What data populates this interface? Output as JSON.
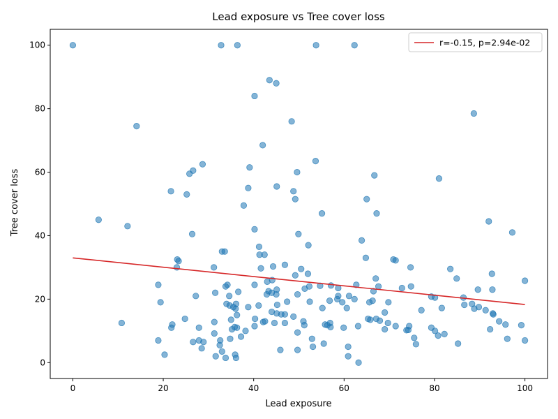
{
  "chart_data": {
    "type": "scatter",
    "title": "Lead exposure vs Tree cover loss",
    "xlabel": "Lead exposure",
    "ylabel": "Tree cover loss",
    "xlim": [
      -5,
      105
    ],
    "ylim": [
      -5,
      105
    ],
    "xticks": [
      0,
      20,
      40,
      60,
      80,
      100
    ],
    "yticks": [
      0,
      20,
      40,
      60,
      80,
      100
    ],
    "grid": false,
    "legend_position": "top-right",
    "point_color": "#1f77b4",
    "line_color": "#d62728",
    "series": [
      {
        "points": [
          [
            0,
            100
          ],
          [
            32.8,
            100
          ],
          [
            36.4,
            100
          ],
          [
            53.8,
            100
          ],
          [
            62.3,
            100
          ],
          [
            43.5,
            89
          ],
          [
            45,
            88
          ],
          [
            40.2,
            84
          ],
          [
            88.7,
            78.5
          ],
          [
            14.1,
            74.5
          ],
          [
            48.4,
            76
          ],
          [
            42,
            68.5
          ],
          [
            53.7,
            63.5
          ],
          [
            28.7,
            62.5
          ],
          [
            39.1,
            61.5
          ],
          [
            26.6,
            60.5
          ],
          [
            25.8,
            59.5
          ],
          [
            49.6,
            60
          ],
          [
            66.7,
            59
          ],
          [
            81,
            58
          ],
          [
            45.1,
            55.5
          ],
          [
            38.8,
            55
          ],
          [
            21.7,
            54
          ],
          [
            48.8,
            54
          ],
          [
            25.2,
            53
          ],
          [
            49.2,
            51.5
          ],
          [
            65,
            51.5
          ],
          [
            37.8,
            49.5
          ],
          [
            55.1,
            47
          ],
          [
            67.2,
            47
          ],
          [
            5.7,
            45
          ],
          [
            92,
            44.5
          ],
          [
            12.1,
            43
          ],
          [
            97.2,
            41
          ],
          [
            40.2,
            42
          ],
          [
            26.4,
            40.5
          ],
          [
            49.9,
            40.5
          ],
          [
            63.9,
            38.5
          ],
          [
            52.1,
            37
          ],
          [
            41.2,
            36.5
          ],
          [
            33,
            35
          ],
          [
            33.6,
            35
          ],
          [
            41.3,
            34
          ],
          [
            42.4,
            34
          ],
          [
            64.8,
            33
          ],
          [
            23.1,
            32.5
          ],
          [
            23.4,
            32
          ],
          [
            70.9,
            32.5
          ],
          [
            71.4,
            32.2
          ],
          [
            31.2,
            30
          ],
          [
            23,
            30
          ],
          [
            41.6,
            29.7
          ],
          [
            44.3,
            30.3
          ],
          [
            46.9,
            30.8
          ],
          [
            50.5,
            29.5
          ],
          [
            74.7,
            30
          ],
          [
            83.5,
            29.5
          ],
          [
            52,
            28
          ],
          [
            49.2,
            27.5
          ],
          [
            67,
            26.5
          ],
          [
            92.7,
            28
          ],
          [
            84.9,
            26.5
          ],
          [
            44.1,
            26
          ],
          [
            43,
            25.5
          ],
          [
            100,
            25.8
          ],
          [
            18.9,
            24.5
          ],
          [
            33.8,
            24
          ],
          [
            34.2,
            24.5
          ],
          [
            40.2,
            24.5
          ],
          [
            52.3,
            24
          ],
          [
            54.7,
            24.2
          ],
          [
            57.1,
            24.3
          ],
          [
            58.7,
            23.5
          ],
          [
            62.7,
            24.5
          ],
          [
            67.6,
            24
          ],
          [
            72.8,
            23.5
          ],
          [
            74.8,
            24
          ],
          [
            89.6,
            23
          ],
          [
            92.8,
            23
          ],
          [
            51.3,
            23.3
          ],
          [
            45.1,
            23
          ],
          [
            43.3,
            22.5
          ],
          [
            44,
            22
          ],
          [
            36.6,
            22.3
          ],
          [
            31.5,
            22
          ],
          [
            27.2,
            21
          ],
          [
            34.6,
            21
          ],
          [
            42.9,
            21.5
          ],
          [
            45,
            21.5
          ],
          [
            49.7,
            21.5
          ],
          [
            58.7,
            21
          ],
          [
            61.1,
            21
          ],
          [
            62.3,
            20
          ],
          [
            66.5,
            22.5
          ],
          [
            80.1,
            20.5
          ],
          [
            79.3,
            20.8
          ],
          [
            86.4,
            20.5
          ],
          [
            56.8,
            19.5
          ],
          [
            58.5,
            20
          ],
          [
            59.6,
            19
          ],
          [
            65.6,
            19
          ],
          [
            66.3,
            19.5
          ],
          [
            69.8,
            19
          ],
          [
            19.4,
            19
          ],
          [
            34,
            18.5
          ],
          [
            34.7,
            18
          ],
          [
            35.5,
            17.5
          ],
          [
            36.1,
            18.5
          ],
          [
            38.8,
            17.5
          ],
          [
            41.1,
            18
          ],
          [
            45.2,
            18.2
          ],
          [
            47.4,
            19.2
          ],
          [
            52.4,
            19.2
          ],
          [
            60.6,
            17.2
          ],
          [
            77.1,
            16.5
          ],
          [
            81.6,
            17.2
          ],
          [
            86.6,
            18.2
          ],
          [
            88.3,
            18.5
          ],
          [
            88.8,
            17
          ],
          [
            89.8,
            17.5
          ],
          [
            91.3,
            16.5
          ],
          [
            55.2,
            17.2
          ],
          [
            36,
            17
          ],
          [
            44,
            16
          ],
          [
            45.1,
            15.5
          ],
          [
            46.1,
            15.2
          ],
          [
            46.9,
            15.2
          ],
          [
            48.8,
            14.5
          ],
          [
            69,
            15.8
          ],
          [
            93,
            15.2
          ],
          [
            92.9,
            15.5
          ],
          [
            24.8,
            13.8
          ],
          [
            31.3,
            12.8
          ],
          [
            35,
            13.5
          ],
          [
            36.3,
            15
          ],
          [
            40.3,
            13.8
          ],
          [
            42.1,
            12.8
          ],
          [
            42.5,
            13
          ],
          [
            44.6,
            12.5
          ],
          [
            46.9,
            12.5
          ],
          [
            51,
            13
          ],
          [
            55.8,
            12
          ],
          [
            56.9,
            12.5
          ],
          [
            65.3,
            13.8
          ],
          [
            65.8,
            13.5
          ],
          [
            67.1,
            13.8
          ],
          [
            67.9,
            13.2
          ],
          [
            69.7,
            12.5
          ],
          [
            94.3,
            13
          ],
          [
            95.7,
            12
          ],
          [
            99.2,
            11.8
          ],
          [
            10.8,
            12.5
          ],
          [
            22,
            12
          ],
          [
            21.8,
            11
          ],
          [
            27.9,
            11
          ],
          [
            35.2,
            10.5
          ],
          [
            35.8,
            11.2
          ],
          [
            36.3,
            11
          ],
          [
            38.2,
            10
          ],
          [
            40.2,
            11.5
          ],
          [
            51.2,
            11.8
          ],
          [
            56.3,
            11.8
          ],
          [
            57,
            11.2
          ],
          [
            59.9,
            11
          ],
          [
            63.1,
            11.5
          ],
          [
            69,
            10.5
          ],
          [
            71.4,
            11.5
          ],
          [
            73.8,
            10.2
          ],
          [
            74.2,
            10.3
          ],
          [
            74.4,
            11.5
          ],
          [
            79.3,
            11
          ],
          [
            80.1,
            10
          ],
          [
            92.3,
            10.5
          ],
          [
            31.3,
            9.2
          ],
          [
            49.7,
            9.5
          ],
          [
            80.8,
            8.5
          ],
          [
            82.2,
            9
          ],
          [
            37.2,
            8.2
          ],
          [
            34.8,
            7.5
          ],
          [
            27.9,
            7
          ],
          [
            28.9,
            6.5
          ],
          [
            26.6,
            6.5
          ],
          [
            18.9,
            7
          ],
          [
            32.6,
            7
          ],
          [
            52.9,
            7.5
          ],
          [
            55.5,
            6
          ],
          [
            75.5,
            7.8
          ],
          [
            96.1,
            7.5
          ],
          [
            100,
            7
          ],
          [
            32.5,
            5.5
          ],
          [
            28.5,
            4.5
          ],
          [
            33,
            3.5
          ],
          [
            31.6,
            2
          ],
          [
            33.8,
            1.5
          ],
          [
            35.9,
            2.5
          ],
          [
            36.1,
            1.5
          ],
          [
            20.3,
            2.5
          ],
          [
            45.9,
            4
          ],
          [
            49.7,
            4
          ],
          [
            53.1,
            5
          ],
          [
            60.9,
            5
          ],
          [
            75.9,
            5.8
          ],
          [
            85.2,
            6
          ],
          [
            60.9,
            2
          ],
          [
            63.2,
            0
          ]
        ]
      }
    ],
    "fit_line": {
      "x": [
        0,
        100
      ],
      "y": [
        33,
        18.3
      ]
    },
    "legend": [
      {
        "label": "r=-0.15, p=2.94e-02",
        "kind": "line"
      }
    ]
  }
}
